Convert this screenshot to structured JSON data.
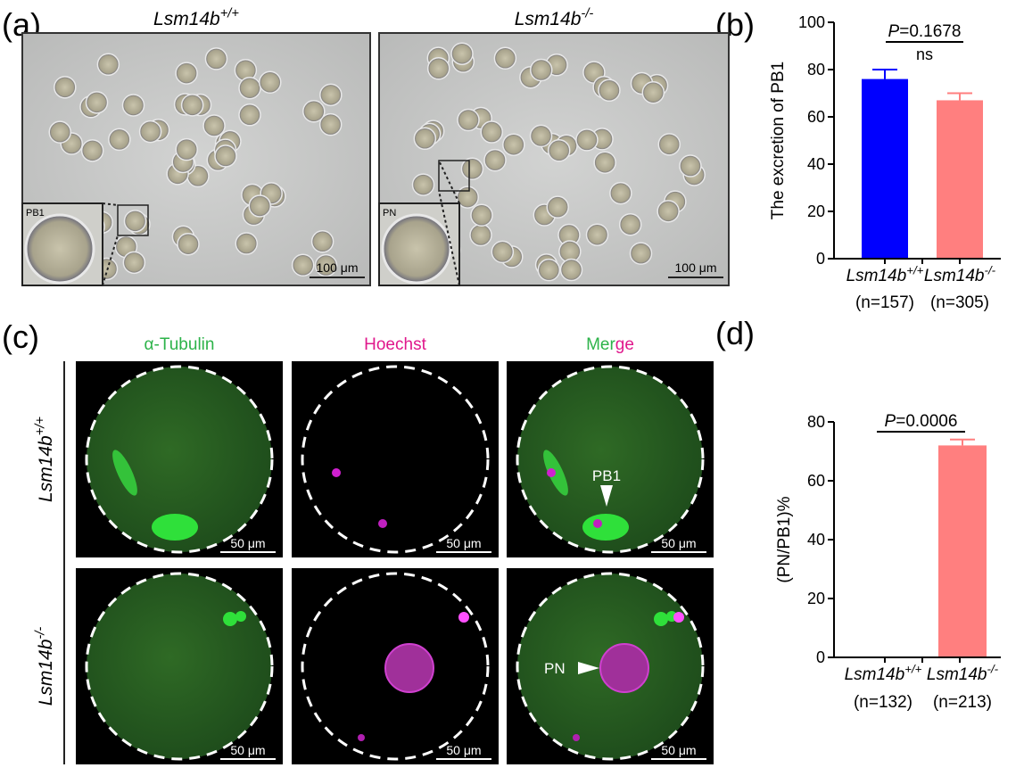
{
  "panel_labels": [
    "(a)",
    "(b)",
    "(c)",
    "(d)"
  ],
  "genotypes": [
    {
      "name": "Lsm14b",
      "sup": "+/+"
    },
    {
      "name": "Lsm14b",
      "sup": "-/-"
    }
  ],
  "brightfield": {
    "scale_bar": "100 μm",
    "insets": [
      "PB1",
      "PN"
    ]
  },
  "fluorescence": {
    "channels": [
      {
        "parts": [
          {
            "text": "α-Tubulin",
            "color": "#2db34a"
          }
        ]
      },
      {
        "parts": [
          {
            "text": "Hoechst",
            "color": "#e0188c"
          }
        ]
      },
      {
        "parts": [
          {
            "text": "Mer",
            "color": "#2db34a"
          },
          {
            "text": "ge",
            "color": "#e0188c"
          }
        ]
      }
    ],
    "scale_bar": "50 μm",
    "arrows": [
      "PB1",
      "PN"
    ]
  },
  "chart_data": [
    {
      "type": "bar",
      "ylabel": "The excretion of PB1",
      "categories": [
        "Lsm14b",
        "Lsm14b"
      ],
      "category_superscripts": [
        "+/+",
        "-/-"
      ],
      "category_counts": [
        "(n=157)",
        "(n=305)"
      ],
      "values": [
        76,
        67
      ],
      "errors": [
        4,
        3
      ],
      "colors": [
        "#0000ff",
        "#ff7f7f"
      ],
      "ylim": [
        0,
        100
      ],
      "yticks": [
        0,
        20,
        40,
        60,
        80,
        100
      ],
      "significance": {
        "p_symbol": "P",
        "p_value": "=0.1678",
        "note": "ns"
      }
    },
    {
      "type": "bar",
      "ylabel": "(PN/PB1)%",
      "categories": [
        "Lsm14b",
        "Lsm14b"
      ],
      "category_superscripts": [
        "+/+",
        "-/-"
      ],
      "category_counts": [
        "(n=132)",
        "(n=213)"
      ],
      "values": [
        0,
        72
      ],
      "errors": [
        0,
        2
      ],
      "colors": [
        "#0000ff",
        "#ff7f7f"
      ],
      "ylim": [
        0,
        80
      ],
      "yticks": [
        0,
        20,
        40,
        60,
        80
      ],
      "significance": {
        "p_symbol": "P",
        "p_value": "=0.0006"
      }
    }
  ]
}
